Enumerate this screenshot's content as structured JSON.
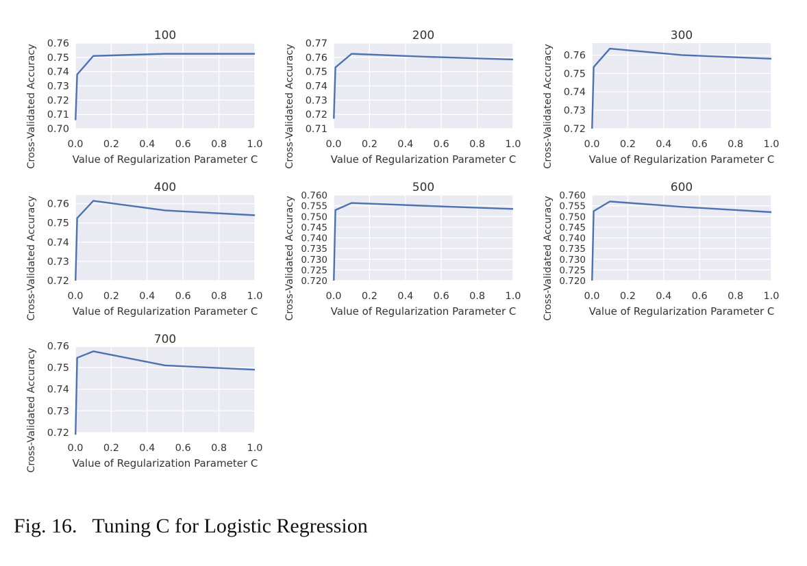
{
  "figure": {
    "caption": "Fig. 16.   Tuning C for Logistic Regression"
  },
  "style": {
    "panel_background": "#EAEAF2",
    "gridline_color": "#FFFFFF",
    "line_color": "#4C72B0",
    "text_color": "#333333"
  },
  "chart_data": [
    {
      "type": "line",
      "title": "100",
      "xlabel": "Value of Regularization Parameter C",
      "ylabel": "Cross-Validated Accuracy",
      "xlim": [
        0,
        1.0
      ],
      "ylim": [
        0.7,
        0.76
      ],
      "xticks": [
        "0.0",
        "0.2",
        "0.4",
        "0.6",
        "0.8",
        "1.0"
      ],
      "yticks": [
        "0.70",
        "0.71",
        "0.72",
        "0.73",
        "0.74",
        "0.75",
        "0.76"
      ],
      "grid": true,
      "series": [
        {
          "x": [
            0.001,
            0.01,
            0.1,
            0.5,
            1.0
          ],
          "y": [
            0.706,
            0.738,
            0.751,
            0.7525,
            0.7525
          ]
        }
      ]
    },
    {
      "type": "line",
      "title": "200",
      "xlabel": "Value of Regularization Parameter C",
      "ylabel": "Cross-Validated Accuracy",
      "xlim": [
        0,
        1.0
      ],
      "ylim": [
        0.71,
        0.77
      ],
      "xticks": [
        "0.0",
        "0.2",
        "0.4",
        "0.6",
        "0.8",
        "1.0"
      ],
      "yticks": [
        "0.71",
        "0.72",
        "0.73",
        "0.74",
        "0.75",
        "0.76",
        "0.77"
      ],
      "grid": true,
      "series": [
        {
          "x": [
            0.001,
            0.01,
            0.1,
            0.5,
            1.0
          ],
          "y": [
            0.717,
            0.753,
            0.7625,
            0.7605,
            0.7585
          ]
        }
      ]
    },
    {
      "type": "line",
      "title": "300",
      "xlabel": "Value of Regularization Parameter C",
      "ylabel": "Cross-Validated Accuracy",
      "xlim": [
        0,
        1.0
      ],
      "ylim": [
        0.72,
        0.7665
      ],
      "xticks": [
        "0.0",
        "0.2",
        "0.4",
        "0.6",
        "0.8",
        "1.0"
      ],
      "yticks": [
        "0.72",
        "0.73",
        "0.74",
        "0.75",
        "0.76"
      ],
      "grid": true,
      "series": [
        {
          "x": [
            0.001,
            0.01,
            0.1,
            0.5,
            1.0
          ],
          "y": [
            0.72,
            0.7535,
            0.7635,
            0.76,
            0.758
          ]
        }
      ]
    },
    {
      "type": "line",
      "title": "400",
      "xlabel": "Value of Regularization Parameter C",
      "ylabel": "Cross-Validated Accuracy",
      "xlim": [
        0,
        1.0
      ],
      "ylim": [
        0.72,
        0.7645
      ],
      "xticks": [
        "0.0",
        "0.2",
        "0.4",
        "0.6",
        "0.8",
        "1.0"
      ],
      "yticks": [
        "0.72",
        "0.73",
        "0.74",
        "0.75",
        "0.76"
      ],
      "grid": true,
      "series": [
        {
          "x": [
            0.001,
            0.01,
            0.1,
            0.5,
            1.0
          ],
          "y": [
            0.72,
            0.7525,
            0.7615,
            0.7565,
            0.754
          ]
        }
      ]
    },
    {
      "type": "line",
      "title": "500",
      "xlabel": "Value of Regularization Parameter C",
      "ylabel": "Cross-Validated Accuracy",
      "xlim": [
        0,
        1.0
      ],
      "ylim": [
        0.72,
        0.76
      ],
      "xticks": [
        "0.0",
        "0.2",
        "0.4",
        "0.6",
        "0.8",
        "1.0"
      ],
      "yticks": [
        "0.720",
        "0.725",
        "0.730",
        "0.735",
        "0.740",
        "0.745",
        "0.750",
        "0.755",
        "0.760"
      ],
      "grid": true,
      "series": [
        {
          "x": [
            0.001,
            0.01,
            0.1,
            0.5,
            1.0
          ],
          "y": [
            0.72,
            0.753,
            0.7563,
            0.755,
            0.7535
          ]
        }
      ]
    },
    {
      "type": "line",
      "title": "600",
      "xlabel": "Value of Regularization Parameter C",
      "ylabel": "Cross-Validated Accuracy",
      "xlim": [
        0,
        1.0
      ],
      "ylim": [
        0.72,
        0.76
      ],
      "xticks": [
        "0.0",
        "0.2",
        "0.4",
        "0.6",
        "0.8",
        "1.0"
      ],
      "yticks": [
        "0.720",
        "0.725",
        "0.730",
        "0.735",
        "0.740",
        "0.745",
        "0.750",
        "0.755",
        "0.760"
      ],
      "grid": true,
      "series": [
        {
          "x": [
            0.001,
            0.01,
            0.1,
            0.5,
            1.0
          ],
          "y": [
            0.72,
            0.7525,
            0.757,
            0.7545,
            0.752
          ]
        }
      ]
    },
    {
      "type": "line",
      "title": "700",
      "xlabel": "Value of Regularization Parameter C",
      "ylabel": "Cross-Validated Accuracy",
      "xlim": [
        0,
        1.0
      ],
      "ylim": [
        0.72,
        0.7595
      ],
      "xticks": [
        "0.0",
        "0.2",
        "0.4",
        "0.6",
        "0.8",
        "1.0"
      ],
      "yticks": [
        "0.72",
        "0.73",
        "0.74",
        "0.75",
        "0.76"
      ],
      "grid": true,
      "series": [
        {
          "x": [
            0.001,
            0.01,
            0.1,
            0.5,
            1.0
          ],
          "y": [
            0.719,
            0.7545,
            0.7575,
            0.751,
            0.749
          ]
        }
      ]
    }
  ]
}
